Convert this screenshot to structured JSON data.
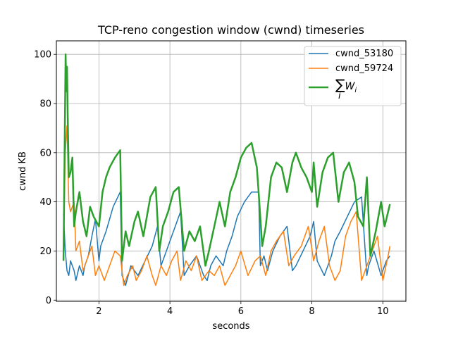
{
  "chart_data": {
    "type": "line",
    "title": "TCP-reno congestion window (cwnd) timeseries",
    "xlabel": "seconds",
    "ylabel": "cwnd KB",
    "xlim": [
      0.8,
      10.65
    ],
    "ylim": [
      -0.5,
      105.5
    ],
    "xticks": [
      2,
      4,
      6,
      8,
      10
    ],
    "yticks": [
      0,
      20,
      40,
      60,
      80,
      100
    ],
    "grid": true,
    "legend_position": "top-right",
    "series": [
      {
        "name": "cwnd_53180",
        "color": "#1f77b4",
        "x": [
          1.0,
          1.05,
          1.1,
          1.15,
          1.2,
          1.3,
          1.35,
          1.45,
          1.55,
          1.6,
          1.7,
          1.8,
          1.9,
          2.0,
          2.05,
          2.2,
          2.4,
          2.6,
          2.65,
          2.75,
          2.9,
          3.1,
          3.3,
          3.5,
          3.65,
          3.75,
          3.85,
          4.0,
          4.15,
          4.3,
          4.4,
          4.55,
          4.75,
          4.95,
          5.05,
          5.15,
          5.3,
          5.5,
          5.6,
          5.75,
          5.9,
          6.1,
          6.3,
          6.5,
          6.55,
          6.65,
          6.75,
          6.9,
          7.1,
          7.3,
          7.45,
          7.55,
          7.75,
          7.95,
          8.05,
          8.15,
          8.35,
          8.55,
          8.65,
          8.8,
          9.0,
          9.2,
          9.4,
          9.55,
          9.6,
          9.75,
          9.95,
          10.1,
          10.2
        ],
        "values": [
          35,
          20,
          12,
          10,
          16,
          12,
          8,
          14,
          10,
          14,
          18,
          26,
          33,
          16,
          22,
          28,
          38,
          44,
          10,
          6,
          14,
          10,
          16,
          22,
          30,
          14,
          18,
          24,
          30,
          36,
          10,
          14,
          18,
          10,
          8,
          14,
          18,
          14,
          20,
          26,
          34,
          40,
          44,
          44,
          14,
          18,
          12,
          20,
          26,
          30,
          12,
          14,
          20,
          26,
          32,
          16,
          10,
          18,
          24,
          28,
          34,
          40,
          42,
          10,
          14,
          20,
          10,
          16,
          18
        ]
      },
      {
        "name": "cwnd_59724",
        "color": "#ff7f0e",
        "x": [
          1.0,
          1.05,
          1.1,
          1.15,
          1.2,
          1.3,
          1.35,
          1.45,
          1.55,
          1.7,
          1.8,
          1.9,
          2.0,
          2.15,
          2.3,
          2.45,
          2.6,
          2.7,
          2.8,
          2.95,
          3.05,
          3.2,
          3.35,
          3.5,
          3.6,
          3.75,
          3.9,
          4.05,
          4.2,
          4.3,
          4.45,
          4.6,
          4.75,
          4.9,
          5.1,
          5.25,
          5.4,
          5.55,
          5.7,
          5.85,
          6.0,
          6.2,
          6.4,
          6.55,
          6.7,
          6.85,
          7.0,
          7.2,
          7.35,
          7.5,
          7.7,
          7.9,
          8.05,
          8.2,
          8.35,
          8.5,
          8.65,
          8.8,
          8.95,
          9.1,
          9.25,
          9.4,
          9.55,
          9.7,
          9.85,
          10.0,
          10.15,
          10.2
        ],
        "values": [
          22,
          60,
          71,
          40,
          36,
          40,
          20,
          24,
          12,
          18,
          22,
          10,
          14,
          8,
          14,
          20,
          18,
          6,
          10,
          14,
          8,
          12,
          18,
          10,
          6,
          14,
          10,
          16,
          20,
          8,
          16,
          12,
          18,
          8,
          12,
          10,
          14,
          6,
          10,
          14,
          20,
          10,
          16,
          18,
          10,
          20,
          24,
          28,
          14,
          18,
          22,
          30,
          16,
          24,
          30,
          14,
          8,
          12,
          26,
          32,
          36,
          8,
          14,
          20,
          26,
          8,
          18,
          22
        ]
      },
      {
        "name": "∑_i W_i",
        "color": "#2ca02c",
        "x": [
          1.0,
          1.03,
          1.06,
          1.08,
          1.1,
          1.12,
          1.15,
          1.2,
          1.25,
          1.3,
          1.35,
          1.45,
          1.55,
          1.65,
          1.75,
          1.85,
          2.0,
          2.1,
          2.2,
          2.3,
          2.45,
          2.6,
          2.65,
          2.75,
          2.85,
          3.0,
          3.1,
          3.25,
          3.45,
          3.6,
          3.7,
          3.8,
          3.95,
          4.1,
          4.25,
          4.4,
          4.55,
          4.7,
          4.85,
          5.0,
          5.1,
          5.25,
          5.4,
          5.55,
          5.7,
          5.85,
          6.0,
          6.15,
          6.3,
          6.45,
          6.5,
          6.6,
          6.7,
          6.85,
          7.0,
          7.15,
          7.3,
          7.45,
          7.55,
          7.7,
          7.85,
          8.0,
          8.05,
          8.15,
          8.3,
          8.45,
          8.6,
          8.75,
          8.9,
          9.05,
          9.2,
          9.3,
          9.45,
          9.55,
          9.65,
          9.8,
          9.95,
          10.05,
          10.15,
          10.2
        ],
        "values": [
          16,
          58,
          100,
          85,
          95,
          75,
          50,
          52,
          58,
          30,
          36,
          44,
          32,
          26,
          38,
          34,
          30,
          44,
          50,
          54,
          58,
          61,
          16,
          28,
          22,
          32,
          36,
          26,
          42,
          46,
          20,
          30,
          36,
          44,
          46,
          20,
          28,
          24,
          30,
          14,
          20,
          30,
          40,
          30,
          44,
          50,
          58,
          62,
          64,
          54,
          44,
          22,
          30,
          50,
          56,
          54,
          44,
          56,
          60,
          54,
          50,
          44,
          56,
          38,
          52,
          58,
          60,
          40,
          52,
          56,
          48,
          34,
          30,
          50,
          18,
          28,
          40,
          30,
          36,
          39
        ]
      }
    ]
  }
}
